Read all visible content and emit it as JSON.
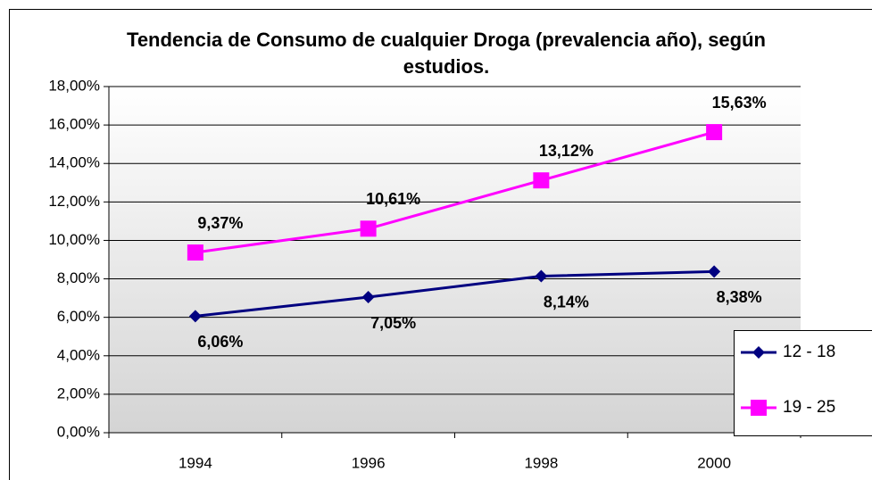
{
  "chart_data": {
    "type": "line",
    "title": "Tendencia de Consumo de cualquier Droga (prevalencia año), según estudios.",
    "categories": [
      "1994",
      "1996",
      "1998",
      "2000"
    ],
    "series": [
      {
        "name": "12 - 18",
        "color": "#000080",
        "marker": "diamond",
        "values": [
          6.06,
          7.05,
          8.14,
          8.38
        ],
        "value_labels": [
          "6,06%",
          "7,05%",
          "8,14%",
          "8,38%"
        ]
      },
      {
        "name": "19 - 25",
        "color": "#ff00ff",
        "marker": "square",
        "values": [
          9.37,
          10.61,
          13.12,
          15.63
        ],
        "value_labels": [
          "9,37%",
          "10,61%",
          "13,12%",
          "15,63%"
        ]
      }
    ],
    "ylim": [
      0,
      18
    ],
    "yticks": [
      {
        "value": 0,
        "label": "0,00%"
      },
      {
        "value": 2,
        "label": "2,00%"
      },
      {
        "value": 4,
        "label": "4,00%"
      },
      {
        "value": 6,
        "label": "6,00%"
      },
      {
        "value": 8,
        "label": "8,00%"
      },
      {
        "value": 10,
        "label": "10,00%"
      },
      {
        "value": 12,
        "label": "12,00%"
      },
      {
        "value": 14,
        "label": "14,00%"
      },
      {
        "value": 16,
        "label": "16,00%"
      },
      {
        "value": 18,
        "label": "18,00%"
      }
    ],
    "grid": true,
    "legend": "right"
  }
}
